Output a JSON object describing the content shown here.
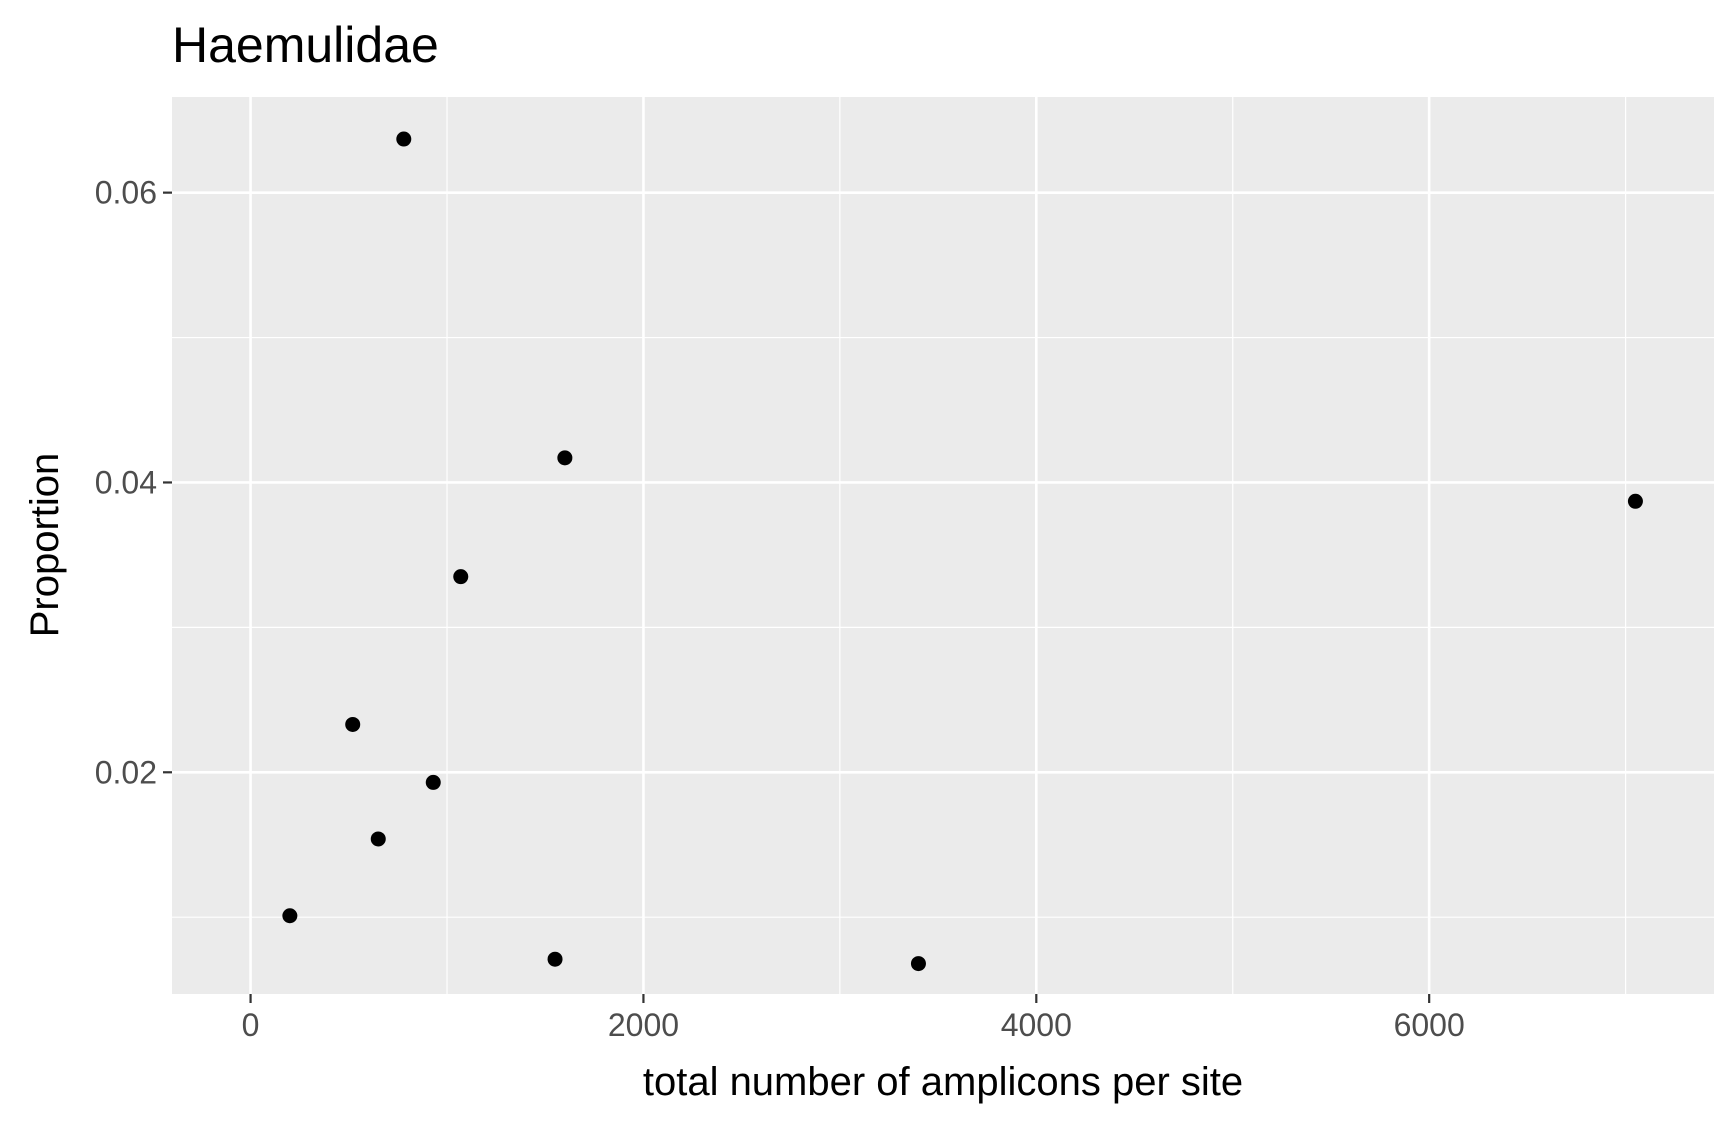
{
  "chart_data": {
    "type": "scatter",
    "title": "Haemulidae",
    "xlabel": "total number of amplicons per site",
    "ylabel": "Proportion",
    "xlim": [
      -400,
      7450
    ],
    "ylim": [
      0.0047,
      0.0666
    ],
    "x_major_ticks": [
      0,
      2000,
      4000,
      6000
    ],
    "x_tick_labels": [
      "0",
      "2000",
      "4000",
      "6000"
    ],
    "x_minor_ticks": [
      1000,
      3000,
      5000,
      7000
    ],
    "y_major_ticks": [
      0.02,
      0.04,
      0.06
    ],
    "y_tick_labels": [
      "0.02",
      "0.04",
      "0.06"
    ],
    "y_minor_ticks": [
      0.01,
      0.03,
      0.05
    ],
    "grid": true,
    "legend": "none",
    "colors": {
      "panel": "#ebebeb",
      "grid": "#ffffff",
      "point": "#000000",
      "tick": "#333333"
    },
    "points": [
      {
        "x": 780,
        "y": 0.0637
      },
      {
        "x": 1600,
        "y": 0.0417
      },
      {
        "x": 7050,
        "y": 0.0387
      },
      {
        "x": 1070,
        "y": 0.0335
      },
      {
        "x": 520,
        "y": 0.0233
      },
      {
        "x": 930,
        "y": 0.0193
      },
      {
        "x": 650,
        "y": 0.0154
      },
      {
        "x": 200,
        "y": 0.0101
      },
      {
        "x": 1550,
        "y": 0.0071
      },
      {
        "x": 3400,
        "y": 0.0068
      }
    ]
  }
}
